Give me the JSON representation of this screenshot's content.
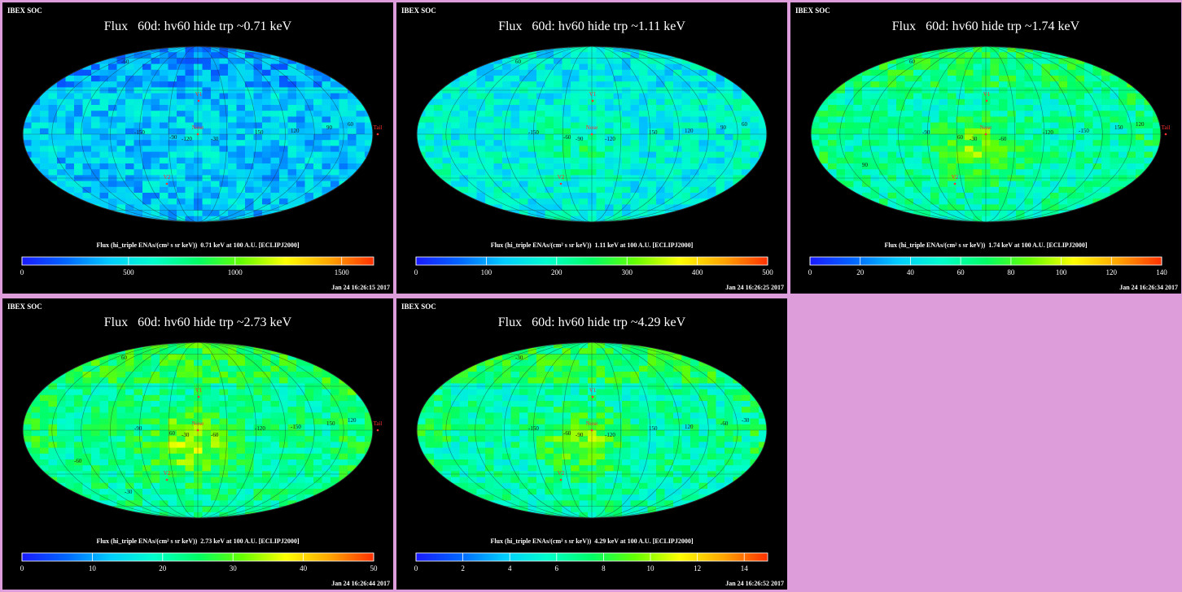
{
  "chart_data": [
    {
      "type": "heatmap",
      "org_label": "IBEX SOC",
      "title": "Flux   60d: hv60 hide trp ~0.71 keV",
      "colorbar_label": "Flux (hi_triple ENAs/(cm² s sr keV))  0.71 keV at 100 A.U. [ECLIPJ2000]",
      "colorbar_range": [
        0,
        1650
      ],
      "colorbar_ticks": [
        "0",
        "500",
        "1000",
        "1500"
      ],
      "colorbar_tick_values": [
        0,
        500,
        1000,
        1500
      ],
      "timestamp": "Jan 24 16:26:15 2017",
      "markers": [
        "V1",
        "Nose",
        "V2",
        "Tail"
      ],
      "map_labels": [
        "-60",
        "-90",
        "-120",
        "-30",
        "-150",
        "150",
        "120",
        "90",
        "60"
      ]
    },
    {
      "type": "heatmap",
      "org_label": "IBEX SOC",
      "title": "Flux   60d: hv60 hide trp ~1.11 keV",
      "colorbar_label": "Flux (hi_triple ENAs/(cm² s sr keV))  1.11 keV at 100 A.U. [ECLIPJ2000]",
      "colorbar_range": [
        0,
        500
      ],
      "colorbar_ticks": [
        "0",
        "100",
        "200",
        "300",
        "400",
        "500"
      ],
      "colorbar_tick_values": [
        0,
        100,
        200,
        300,
        400,
        500
      ],
      "timestamp": "Jan 24 16:26:25 2017",
      "markers": [
        "V1",
        "Nose",
        "V2"
      ],
      "map_labels": [
        "60",
        "-60",
        "-90",
        "-120",
        "-150",
        "150",
        "120",
        "90",
        "60"
      ]
    },
    {
      "type": "heatmap",
      "org_label": "IBEX SOC",
      "title": "Flux   60d: hv60 hide trp ~1.74 keV",
      "colorbar_label": "Flux (hi_triple ENAs/(cm² s sr keV))  1.74 keV at 100 A.U. [ECLIPJ2000]",
      "colorbar_range": [
        0,
        140
      ],
      "colorbar_ticks": [
        "0",
        "20",
        "40",
        "60",
        "80",
        "100",
        "120",
        "140"
      ],
      "colorbar_tick_values": [
        0,
        20,
        40,
        60,
        80,
        100,
        120,
        140
      ],
      "timestamp": "Jan 24 16:26:34 2017",
      "markers": [
        "V1",
        "Nose",
        "V2",
        "Tail"
      ],
      "map_labels": [
        "60",
        "60",
        "-30",
        "-60",
        "-90",
        "-120",
        "-150",
        "150",
        "120",
        "90"
      ]
    },
    {
      "type": "heatmap",
      "org_label": "IBEX SOC",
      "title": "Flux   60d: hv60 hide trp ~2.73 keV",
      "colorbar_label": "Flux (hi_triple ENAs/(cm² s sr keV))  2.73 keV at 100 A.U. [ECLIPJ2000]",
      "colorbar_range": [
        0,
        50
      ],
      "colorbar_ticks": [
        "0",
        "10",
        "20",
        "30",
        "40",
        "50"
      ],
      "colorbar_tick_values": [
        0,
        10,
        20,
        30,
        40,
        50
      ],
      "timestamp": "Jan 24 16:26:44 2017",
      "markers": [
        "V1",
        "Nose",
        "V2",
        "Tail"
      ],
      "map_labels": [
        "60",
        "60",
        "-30",
        "-60",
        "-90",
        "-120",
        "-150",
        "150",
        "120",
        "-60",
        "-30"
      ]
    },
    {
      "type": "heatmap",
      "org_label": "IBEX SOC",
      "title": "Flux   60d: hv60 hide trp ~4.29 keV",
      "colorbar_label": "Flux (hi_triple ENAs/(cm² s sr keV))  4.29 keV at 100 A.U. [ECLIPJ2000]",
      "colorbar_range": [
        0,
        15
      ],
      "colorbar_ticks": [
        "0",
        "2",
        "4",
        "6",
        "8",
        "10",
        "12",
        "14"
      ],
      "colorbar_tick_values": [
        0,
        2,
        4,
        6,
        8,
        10,
        12,
        14
      ],
      "timestamp": "Jan 24 16:26:52 2017",
      "markers": [
        "V1",
        "Nose",
        "V2"
      ],
      "map_labels": [
        "-30",
        "-60",
        "-90",
        "-120",
        "-150",
        "150",
        "120",
        "-60",
        "-30"
      ]
    }
  ],
  "colors": {
    "page_background": "#dd9ddb",
    "panel_background": "#000000",
    "marker_color": "#ff3030",
    "label_color": "#1a1a1a",
    "colormap": [
      "#1a1aff",
      "#0066ff",
      "#00ccff",
      "#00ffcc",
      "#00ff66",
      "#66ff00",
      "#ffff00",
      "#ffa500",
      "#ff3000"
    ]
  }
}
